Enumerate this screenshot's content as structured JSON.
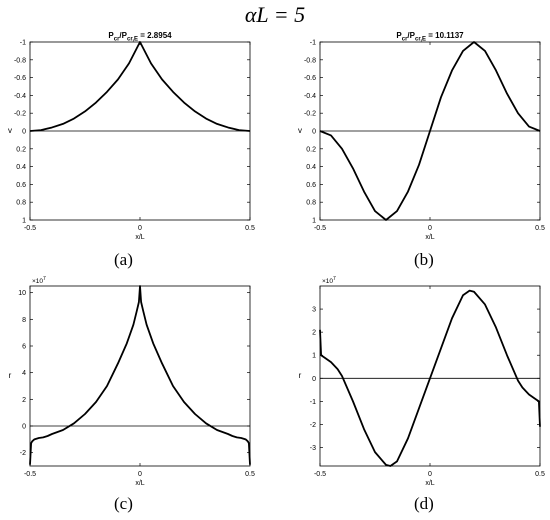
{
  "figure": {
    "title": "αL = 5",
    "panel_labels": [
      "(a)",
      "(b)",
      "(c)",
      "(d)"
    ]
  },
  "chart_data": [
    {
      "type": "line",
      "panel": "(a)",
      "title": "Pcr/Pcr,E = 2.8954",
      "title_parts": {
        "main": "P",
        "sub1": "cr",
        "slash": "/P",
        "sub2": "cr,E",
        "value": " = 2.8954"
      },
      "xlabel": "x/L",
      "ylabel": "v",
      "xlim": [
        -0.5,
        0.5
      ],
      "ylim": [
        -1,
        1
      ],
      "y_reversed": true,
      "xticks": [
        -0.5,
        0,
        0.5
      ],
      "xtick_labels": [
        "-0.5",
        "0",
        "0.5"
      ],
      "yticks": [
        -1,
        -0.8,
        -0.6,
        -0.4,
        -0.2,
        0,
        0.2,
        0.4,
        0.6,
        0.8,
        1
      ],
      "ytick_labels": [
        "-1",
        "-0.8",
        "-0.6",
        "-0.4",
        "-0.2",
        "0",
        "0.2",
        "0.4",
        "0.6",
        "0.8",
        "1"
      ],
      "zero_line": true,
      "series": [
        {
          "x": [
            -0.5,
            -0.45,
            -0.4,
            -0.35,
            -0.3,
            -0.25,
            -0.2,
            -0.15,
            -0.1,
            -0.05,
            0,
            0.05,
            0.1,
            0.15,
            0.2,
            0.25,
            0.3,
            0.35,
            0.4,
            0.45,
            0.5
          ],
          "y": [
            0,
            -0.01,
            -0.04,
            -0.08,
            -0.14,
            -0.22,
            -0.32,
            -0.44,
            -0.58,
            -0.76,
            -1,
            -0.76,
            -0.58,
            -0.44,
            -0.32,
            -0.22,
            -0.14,
            -0.08,
            -0.04,
            -0.01,
            0
          ]
        }
      ]
    },
    {
      "type": "line",
      "panel": "(b)",
      "title": "Pcr/Pcr,E = 10.1137",
      "title_parts": {
        "main": "P",
        "sub1": "cr",
        "slash": "/P",
        "sub2": "cr,E",
        "value": " = 10.1137"
      },
      "xlabel": "x/L",
      "ylabel": "v",
      "xlim": [
        -0.5,
        0.5
      ],
      "ylim": [
        -1,
        1
      ],
      "y_reversed": true,
      "xticks": [
        -0.5,
        0,
        0.5
      ],
      "xtick_labels": [
        "-0.5",
        "0",
        "0.5"
      ],
      "yticks": [
        -1,
        -0.8,
        -0.6,
        -0.4,
        -0.2,
        0,
        0.2,
        0.4,
        0.6,
        0.8,
        1
      ],
      "ytick_labels": [
        "-1",
        "-0.8",
        "-0.6",
        "-0.4",
        "-0.2",
        "0",
        "0.2",
        "0.4",
        "0.6",
        "0.8",
        "1"
      ],
      "zero_line": true,
      "series": [
        {
          "x": [
            -0.5,
            -0.45,
            -0.4,
            -0.35,
            -0.3,
            -0.25,
            -0.2,
            -0.15,
            -0.1,
            -0.05,
            0,
            0.05,
            0.1,
            0.15,
            0.2,
            0.25,
            0.3,
            0.35,
            0.4,
            0.45,
            0.5
          ],
          "y": [
            0,
            0.05,
            0.2,
            0.42,
            0.68,
            0.9,
            1.0,
            0.9,
            0.68,
            0.38,
            0,
            -0.38,
            -0.68,
            -0.9,
            -1.0,
            -0.9,
            -0.68,
            -0.42,
            -0.2,
            -0.05,
            0
          ]
        }
      ]
    },
    {
      "type": "line",
      "panel": "(c)",
      "xlabel": "x/L",
      "ylabel": "r",
      "exponent_label": "×10",
      "exponent_power": "7",
      "xlim": [
        -0.5,
        0.5
      ],
      "ylim": [
        -3,
        10.5
      ],
      "y_reversed": false,
      "xticks": [
        -0.5,
        0,
        0.5
      ],
      "xtick_labels": [
        "-0.5",
        "0",
        "0.5"
      ],
      "yticks": [
        -2,
        0,
        2,
        4,
        6,
        8,
        10
      ],
      "ytick_labels": [
        "-2",
        "0",
        "2",
        "4",
        "6",
        "8",
        "10"
      ],
      "zero_line": true,
      "series": [
        {
          "x": [
            -0.5,
            -0.495,
            -0.49,
            -0.48,
            -0.46,
            -0.44,
            -0.42,
            -0.4,
            -0.35,
            -0.3,
            -0.25,
            -0.2,
            -0.15,
            -0.1,
            -0.06,
            -0.03,
            -0.015,
            -0.005,
            0,
            0.005,
            0.015,
            0.03,
            0.06,
            0.1,
            0.15,
            0.2,
            0.25,
            0.3,
            0.35,
            0.4,
            0.42,
            0.44,
            0.46,
            0.48,
            0.49,
            0.495,
            0.5
          ],
          "y": [
            -2.9,
            -1.3,
            -1.15,
            -1.0,
            -0.9,
            -0.85,
            -0.75,
            -0.6,
            -0.3,
            0.2,
            0.9,
            1.8,
            3.0,
            4.7,
            6.2,
            7.6,
            8.6,
            9.3,
            10.5,
            9.3,
            8.6,
            7.6,
            6.2,
            4.7,
            3.0,
            1.8,
            0.9,
            0.2,
            -0.3,
            -0.6,
            -0.75,
            -0.85,
            -0.9,
            -1.0,
            -1.15,
            -1.3,
            -2.9
          ]
        }
      ]
    },
    {
      "type": "line",
      "panel": "(d)",
      "xlabel": "x/L",
      "ylabel": "r",
      "exponent_label": "×10",
      "exponent_power": "7",
      "xlim": [
        -0.5,
        0.5
      ],
      "ylim": [
        -3.8,
        4
      ],
      "y_reversed": false,
      "xticks": [
        -0.5,
        0,
        0.5
      ],
      "xtick_labels": [
        "-0.5",
        "0",
        "0.5"
      ],
      "yticks": [
        -3,
        -2,
        -1,
        0,
        1,
        2,
        3
      ],
      "ytick_labels": [
        "-3",
        "-2",
        "-1",
        "0",
        "1",
        "2",
        "3"
      ],
      "zero_line": true,
      "series": [
        {
          "x": [
            -0.5,
            -0.495,
            -0.48,
            -0.45,
            -0.42,
            -0.4,
            -0.35,
            -0.3,
            -0.25,
            -0.2,
            -0.18,
            -0.15,
            -0.1,
            -0.05,
            0,
            0.05,
            0.1,
            0.15,
            0.18,
            0.2,
            0.25,
            0.3,
            0.35,
            0.4,
            0.42,
            0.45,
            0.48,
            0.495,
            0.5
          ],
          "y": [
            2.1,
            1.0,
            0.9,
            0.7,
            0.4,
            0.1,
            -1.0,
            -2.2,
            -3.2,
            -3.75,
            -3.8,
            -3.6,
            -2.6,
            -1.3,
            0,
            1.3,
            2.6,
            3.6,
            3.8,
            3.75,
            3.2,
            2.2,
            1.0,
            -0.1,
            -0.4,
            -0.7,
            -0.9,
            -1.0,
            -2.1
          ]
        }
      ]
    }
  ]
}
